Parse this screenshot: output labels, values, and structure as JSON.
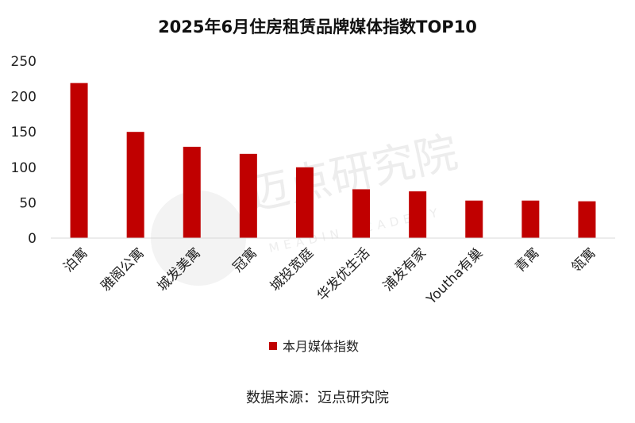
{
  "chart_data": {
    "type": "bar",
    "title": "2025年6月住房租赁品牌媒体指数TOP10",
    "categories": [
      "泊寓",
      "雅阁公寓",
      "城发美寓",
      "冠寓",
      "城投宽庭",
      "华发优生活",
      "浦发有家",
      "Youtha有巢",
      "青寓",
      "瓴寓"
    ],
    "series": [
      {
        "name": "本月媒体指数",
        "color": "#c00000",
        "values": [
          219,
          150,
          129,
          119,
          100,
          69,
          66,
          53,
          53,
          52
        ]
      }
    ],
    "ylim": [
      0,
      250
    ],
    "yticks": [
      0,
      50,
      100,
      150,
      200,
      250
    ],
    "grid": false,
    "legend_position": "bottom"
  },
  "watermark": {
    "logo_text": "迈点研究院",
    "sub_text": "MEADIN ACADEMY"
  },
  "source_text": "数据来源：迈点研究院"
}
